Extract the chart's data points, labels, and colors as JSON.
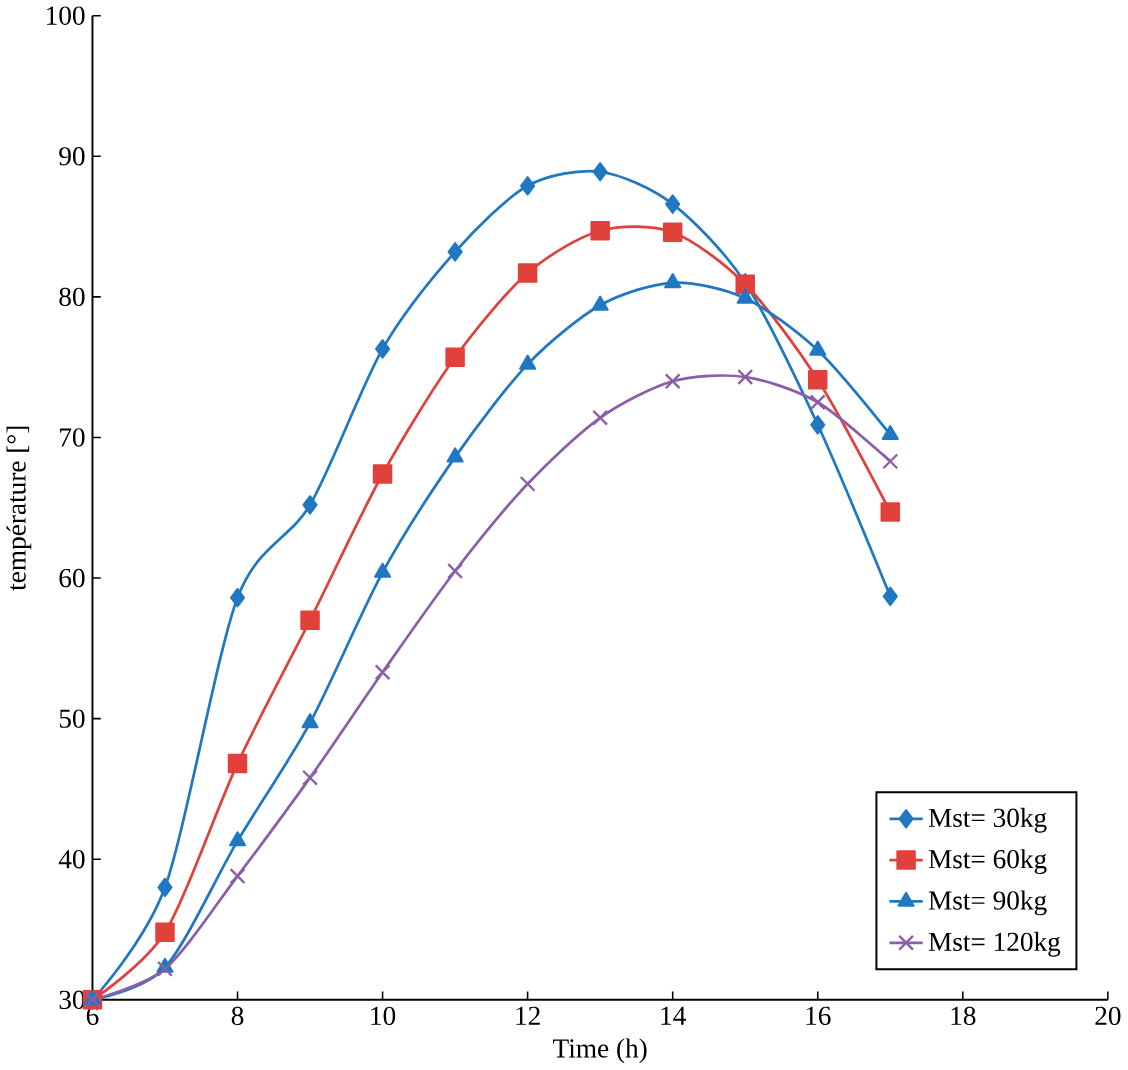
{
  "chart_data": {
    "type": "line",
    "xlabel": "Time (h)",
    "ylabel": "température [°]",
    "x": [
      6,
      7,
      8,
      9,
      10,
      11,
      12,
      13,
      14,
      15,
      16,
      17
    ],
    "series": [
      {
        "name": "Mst= 30kg",
        "color": "#1f78c1",
        "marker": "diamond",
        "values": [
          30,
          38,
          58.6,
          65.2,
          76.3,
          83.2,
          87.9,
          88.9,
          86.6,
          81,
          70.9,
          58.7
        ]
      },
      {
        "name": "Mst= 60kg",
        "color": "#e0423b",
        "marker": "square",
        "values": [
          30,
          34.8,
          46.8,
          57,
          67.4,
          75.7,
          81.7,
          84.7,
          84.6,
          80.9,
          74.1,
          64.7
        ]
      },
      {
        "name": "Mst= 90kg",
        "color": "#1f78c1",
        "marker": "triangle",
        "values": [
          30,
          32.3,
          41.3,
          49.7,
          60.4,
          68.6,
          75.2,
          79.4,
          81,
          79.9,
          76.2,
          70.2
        ]
      },
      {
        "name": "Mst= 120kg",
        "color": "#8a5fa8",
        "marker": "cross",
        "values": [
          30,
          32.2,
          38.8,
          45.8,
          53.3,
          60.5,
          66.7,
          71.4,
          74,
          74.3,
          72.5,
          68.3
        ]
      }
    ],
    "xlim": [
      6,
      20
    ],
    "ylim": [
      30,
      100
    ],
    "xticks": [
      6,
      8,
      10,
      12,
      14,
      16,
      18,
      20
    ],
    "yticks": [
      30,
      40,
      50,
      60,
      70,
      80,
      90,
      100
    ],
    "legend": "bottom right",
    "grid": false
  }
}
